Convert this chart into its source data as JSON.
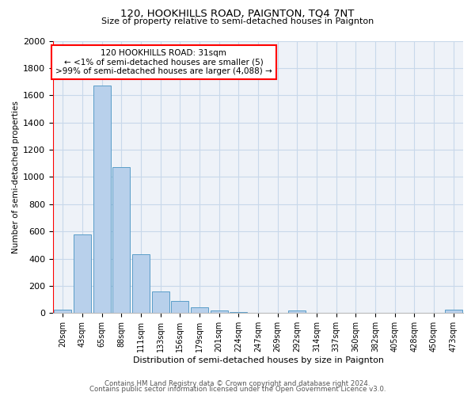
{
  "title": "120, HOOKHILLS ROAD, PAIGNTON, TQ4 7NT",
  "subtitle": "Size of property relative to semi-detached houses in Paignton",
  "xlabel": "Distribution of semi-detached houses by size in Paignton",
  "ylabel": "Number of semi-detached properties",
  "bar_labels": [
    "20sqm",
    "43sqm",
    "65sqm",
    "88sqm",
    "111sqm",
    "133sqm",
    "156sqm",
    "179sqm",
    "201sqm",
    "224sqm",
    "247sqm",
    "269sqm",
    "292sqm",
    "314sqm",
    "337sqm",
    "360sqm",
    "382sqm",
    "405sqm",
    "428sqm",
    "450sqm",
    "473sqm"
  ],
  "bar_values": [
    25,
    580,
    1670,
    1070,
    430,
    160,
    90,
    40,
    20,
    5,
    3,
    2,
    20,
    2,
    1,
    1,
    1,
    1,
    1,
    1,
    25
  ],
  "bar_color": "#b8d0eb",
  "bar_edge_color": "#5a9dc8",
  "ylim": [
    0,
    2000
  ],
  "yticks": [
    0,
    200,
    400,
    600,
    800,
    1000,
    1200,
    1400,
    1600,
    1800,
    2000
  ],
  "annotation_title": "120 HOOKHILLS ROAD: 31sqm",
  "annotation_line1": "← <1% of semi-detached houses are smaller (5)",
  "annotation_line2": ">99% of semi-detached houses are larger (4,088) →",
  "footer_line1": "Contains HM Land Registry data © Crown copyright and database right 2024.",
  "footer_line2": "Contains public sector information licensed under the Open Government Licence v3.0.",
  "bg_color": "#ffffff",
  "plot_bg_color": "#eef2f8",
  "grid_color": "#c8d8ea"
}
